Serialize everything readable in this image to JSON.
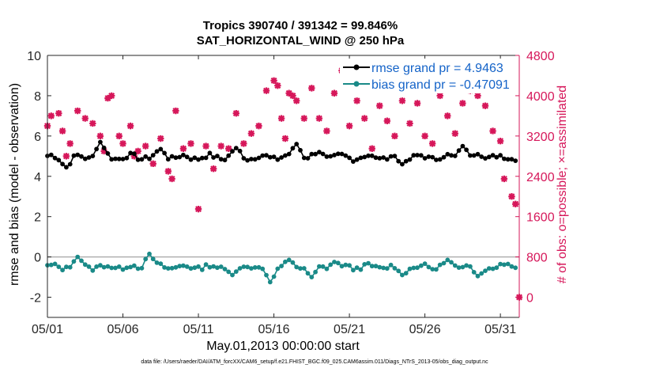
{
  "chart_data": {
    "type": "line",
    "title_line1": "Tropics 390740 / 391342 = 99.846%",
    "title_line2": "SAT_HORIZONTAL_WIND @ 250 hPa",
    "xlabel": "May.01,2013 00:00:00 start",
    "ylabel_left": "rmse and bias (model - observation)",
    "ylabel_right": "# of obs: o=possible; ×=assimilated",
    "footnote": "data file: /Users/raeder/DAI/ATM_forcXX/CAM6_setup/f.e21.FHIST_BGC.f09_025.CAM6assim.011/Diags_NTrS_2013-05/obs_diag_output.nc",
    "x_ticks": [
      "05/01",
      "05/06",
      "05/11",
      "05/16",
      "05/21",
      "05/26",
      "05/31"
    ],
    "x_tick_days": [
      0,
      5,
      10,
      15,
      20,
      25,
      30
    ],
    "xlim": [
      0,
      31.25
    ],
    "ylim_left": [
      -3,
      10
    ],
    "left_ticks": [
      "-2",
      "0",
      "2",
      "4",
      "6",
      "8",
      "10"
    ],
    "ylim_right": [
      -400,
      4800
    ],
    "right_ticks": [
      "0",
      "800",
      "1600",
      "2400",
      "3200",
      "4000",
      "4800"
    ],
    "colors": {
      "rmse": "#000000",
      "bias": "#1a8a88",
      "obs": "#d6175a",
      "zero_line": "#b0b0b0",
      "legend_text": "#1463c8"
    },
    "legend": [
      {
        "label": "rmse grand pr = 4.9463",
        "series": "rmse"
      },
      {
        "label": "bias grand pr = -0.47091",
        "series": "bias"
      }
    ],
    "series_meta": {
      "rmse_mean": 4.95,
      "rmse_amp": 0.25,
      "bias_mean": -0.5,
      "bias_amp": 0.22,
      "obs_mean": 3050,
      "obs_amp": 300,
      "samples_per_day": 4,
      "count": 125
    },
    "rmse_highlights": [
      [
        1.25,
        4.45
      ],
      [
        3.5,
        5.7
      ],
      [
        7.5,
        5.35
      ],
      [
        12.5,
        5.4
      ],
      [
        16.5,
        5.6
      ],
      [
        18.0,
        5.2
      ],
      [
        22.0,
        4.9
      ],
      [
        23.5,
        4.6
      ],
      [
        27.5,
        5.5
      ],
      [
        28.5,
        5.1
      ]
    ],
    "bias_highlights": [
      [
        2.0,
        0.0
      ],
      [
        6.75,
        0.15
      ],
      [
        12.25,
        -0.9
      ],
      [
        13.25,
        -0.5
      ],
      [
        14.75,
        -1.25
      ],
      [
        16.0,
        -0.15
      ],
      [
        17.5,
        -1.0
      ],
      [
        19.0,
        -0.25
      ],
      [
        23.5,
        -0.9
      ],
      [
        26.5,
        -0.15
      ],
      [
        28.5,
        -0.95
      ],
      [
        30.5,
        -0.35
      ]
    ],
    "obs_points": [
      [
        0.0,
        3400
      ],
      [
        0.25,
        3600
      ],
      [
        0.75,
        3650
      ],
      [
        1.0,
        3300
      ],
      [
        1.25,
        2800
      ],
      [
        1.5,
        3050
      ],
      [
        2.0,
        3700
      ],
      [
        2.5,
        3550
      ],
      [
        3.0,
        3450
      ],
      [
        3.5,
        3200
      ],
      [
        3.75,
        2900
      ],
      [
        4.0,
        3950
      ],
      [
        4.25,
        4000
      ],
      [
        4.75,
        3200
      ],
      [
        5.0,
        3050
      ],
      [
        5.5,
        3400
      ],
      [
        5.75,
        2800
      ],
      [
        6.0,
        2900
      ],
      [
        6.5,
        3000
      ],
      [
        7.0,
        2650
      ],
      [
        7.5,
        3150
      ],
      [
        8.0,
        2500
      ],
      [
        8.25,
        2350
      ],
      [
        8.5,
        3700
      ],
      [
        9.0,
        2950
      ],
      [
        9.5,
        3050
      ],
      [
        10.0,
        1750
      ],
      [
        10.5,
        3000
      ],
      [
        11.0,
        2550
      ],
      [
        11.5,
        3000
      ],
      [
        12.0,
        2950
      ],
      [
        12.5,
        3650
      ],
      [
        13.0,
        3050
      ],
      [
        13.5,
        3250
      ],
      [
        14.0,
        3400
      ],
      [
        14.5,
        4100
      ],
      [
        15.0,
        4300
      ],
      [
        15.25,
        4200
      ],
      [
        15.5,
        3550
      ],
      [
        15.75,
        3150
      ],
      [
        16.0,
        4050
      ],
      [
        16.25,
        4000
      ],
      [
        16.5,
        3900
      ],
      [
        17.0,
        3550
      ],
      [
        17.5,
        4150
      ],
      [
        18.0,
        3550
      ],
      [
        18.5,
        3300
      ],
      [
        19.0,
        4050
      ],
      [
        19.5,
        4500
      ],
      [
        20.0,
        3400
      ],
      [
        20.5,
        3900
      ],
      [
        21.0,
        3550
      ],
      [
        21.5,
        2950
      ],
      [
        22.0,
        3800
      ],
      [
        22.5,
        3500
      ],
      [
        23.0,
        3200
      ],
      [
        23.5,
        3900
      ],
      [
        24.0,
        3450
      ],
      [
        24.5,
        3850
      ],
      [
        25.0,
        3200
      ],
      [
        25.5,
        3050
      ],
      [
        26.0,
        4000
      ],
      [
        26.5,
        3600
      ],
      [
        27.0,
        3250
      ],
      [
        27.5,
        3850
      ],
      [
        28.0,
        4100
      ],
      [
        28.5,
        4000
      ],
      [
        29.0,
        3800
      ],
      [
        29.5,
        3300
      ],
      [
        30.0,
        3100
      ],
      [
        30.25,
        2350
      ],
      [
        30.75,
        2000
      ],
      [
        31.0,
        1850
      ],
      [
        31.25,
        0
      ]
    ]
  }
}
